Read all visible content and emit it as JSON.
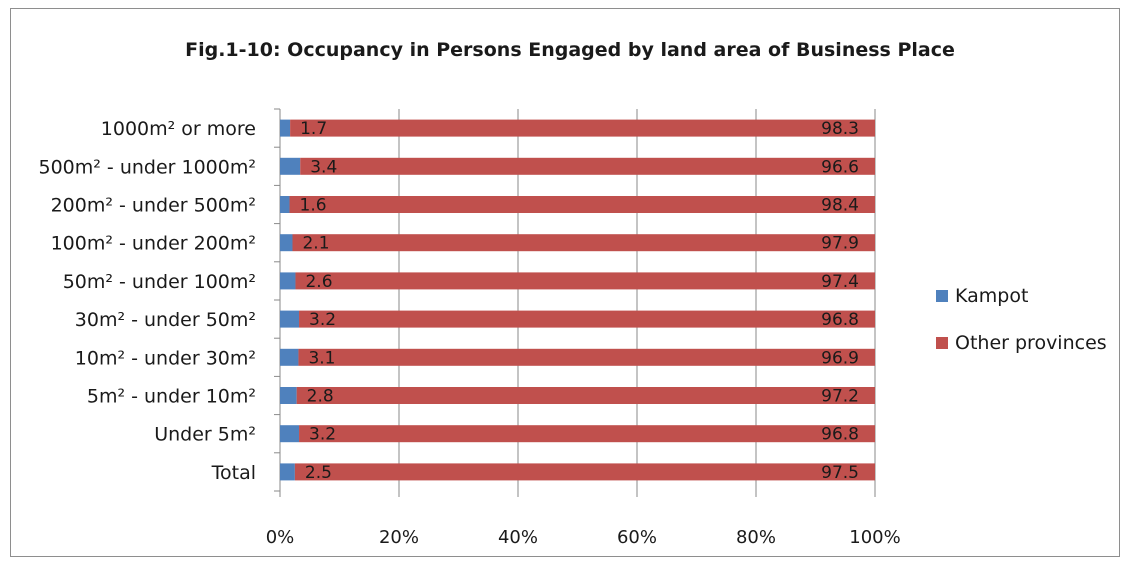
{
  "chart_data": {
    "type": "bar",
    "orientation": "horizontal",
    "stacked": "percent",
    "title": "Fig.1-10: Occupancy in Persons Engaged by land area of Business Place",
    "categories": [
      "1000m² or more",
      "500m² - under 1000m²",
      "200m² - under 500m²",
      "100m² - under 200m²",
      "50m² - under 100m²",
      "30m² - under 50m²",
      "10m² - under 30m²",
      "5m² - under 10m²",
      "Under 5m²",
      "Total"
    ],
    "series": [
      {
        "name": "Kampot",
        "color": "#4f81bd",
        "values": [
          1.7,
          3.4,
          1.6,
          2.1,
          2.6,
          3.2,
          3.1,
          2.8,
          3.2,
          2.5
        ]
      },
      {
        "name": "Other provinces",
        "color": "#c0504d",
        "values": [
          98.3,
          96.6,
          98.4,
          97.9,
          97.4,
          96.8,
          96.9,
          97.2,
          96.8,
          97.5
        ]
      }
    ],
    "xlim": [
      0,
      100
    ],
    "xticks": [
      "0%",
      "20%",
      "40%",
      "60%",
      "80%",
      "100%"
    ],
    "legend": "right",
    "grid": true
  }
}
